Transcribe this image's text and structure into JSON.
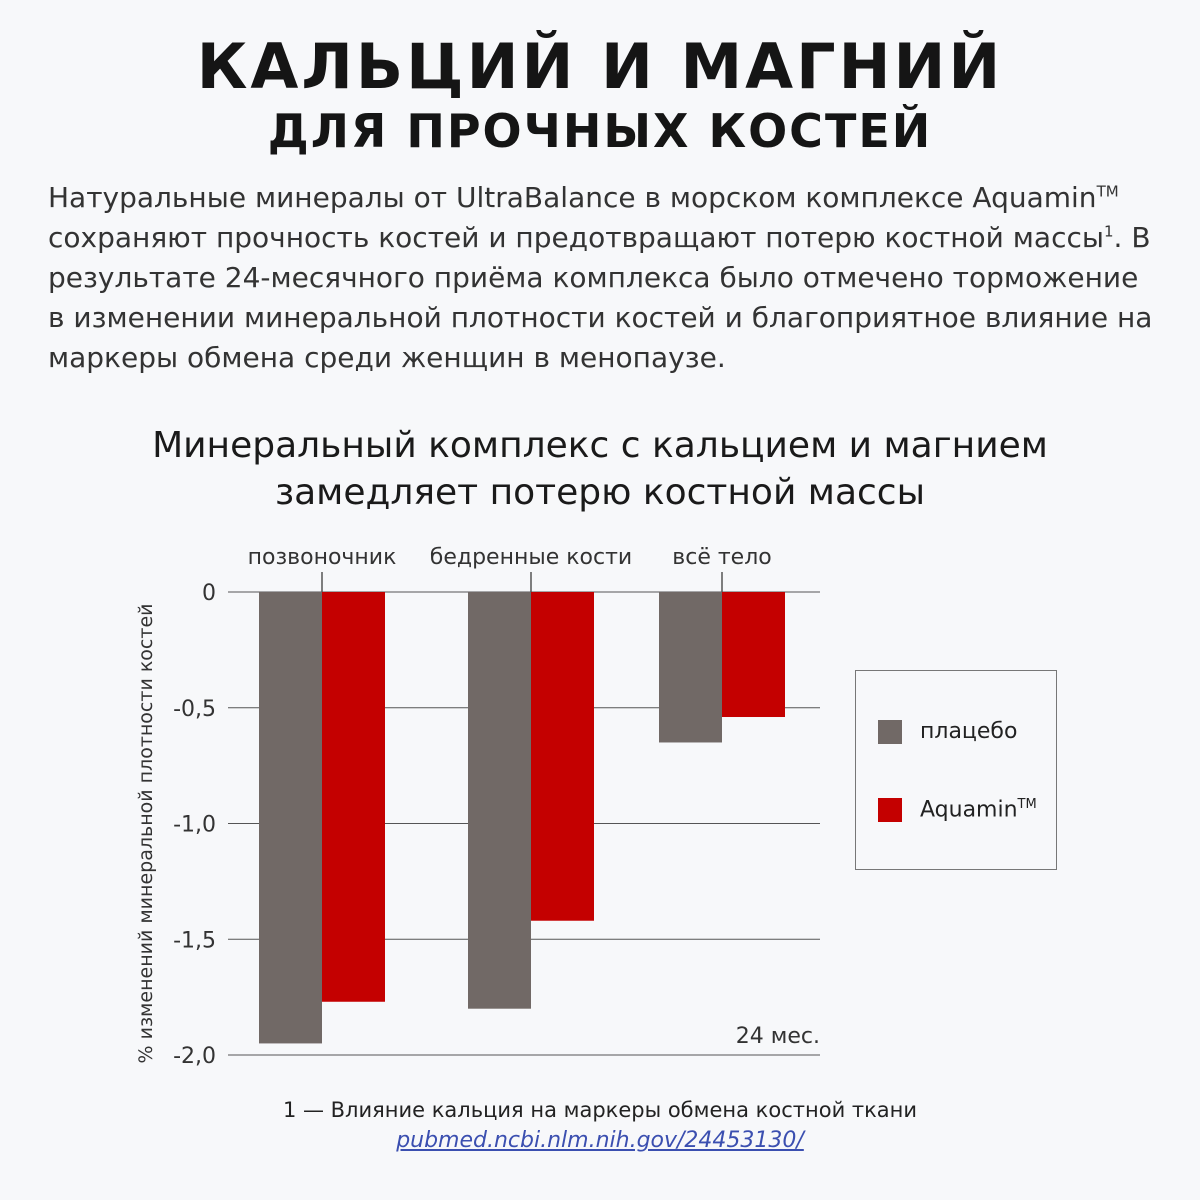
{
  "header": {
    "title_line1": "КАЛЬЦИЙ И МАГНИЙ",
    "title_line2": "ДЛЯ ПРОЧНЫХ КОСТЕЙ"
  },
  "intro": {
    "part1": "Натуральные минералы от UltraBalance в морском комплексе Aquamin",
    "tm": "TM",
    "part2": " сохраняют прочность костей и предотвращают потерю костной массы",
    "footnote_mark": "1",
    "part3": ". В результате 24-месячного приёма комплекса было отмечено торможение в изменении минеральной плотности костей и благоприятное влияние на маркеры обмена среди женщин в менопаузе."
  },
  "chart_data": {
    "type": "bar",
    "title_lines": [
      "Минеральный комплекс с кальцием и магнием",
      "замедляет потерю костной массы"
    ],
    "categories": [
      "позвоночник",
      "бедренные кости",
      "всё тело"
    ],
    "series": [
      {
        "name": "плацебо",
        "values": [
          -1.95,
          -1.8,
          -0.65
        ],
        "color": "#716966"
      },
      {
        "name": "Aquamin",
        "name_suffix": "TM",
        "values": [
          -1.77,
          -1.42,
          -0.54
        ],
        "color": "#c40000"
      }
    ],
    "ylabel": "% изменений минеральной плотности костей",
    "ylim": [
      -2.0,
      0
    ],
    "yticks": [
      0,
      -0.5,
      -1.0,
      -1.5,
      -2.0
    ],
    "ytick_labels": [
      "0",
      "-0,5",
      "-1,0",
      "-1,5",
      "-2,0"
    ],
    "annotation": "24 мес.",
    "grid": true,
    "legend_position": "right"
  },
  "footer": {
    "footnote": "1 — Влияние кальция на маркеры обмена костной ткани",
    "link": "pubmed.ncbi.nlm.nih.gov/24453130/"
  }
}
